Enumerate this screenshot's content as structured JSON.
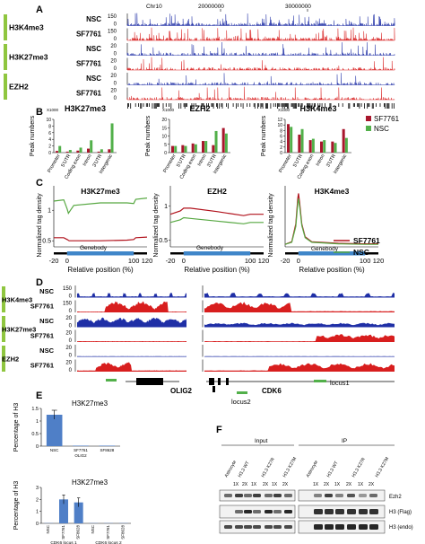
{
  "panels": {
    "A": "A",
    "B": "B",
    "C": "C",
    "D": "D",
    "E": "E",
    "F": "F"
  },
  "colors": {
    "nsc_blue": "#1f2fa6",
    "sf_red": "#d81e1e",
    "bar_red": "#a8162c",
    "bar_green": "#52b04a",
    "green_tag": "#8fc63f",
    "line_red": "#b1121c",
    "line_green": "#57a842",
    "genebody": "#3f86c9",
    "bar_e": "#4f7fc7"
  },
  "panelA": {
    "chrom": "Chr10",
    "pos1": "20000000",
    "pos2": "30000000",
    "tracks": [
      {
        "mark": "H3K4me3",
        "rows": [
          {
            "label": "NSC",
            "scale": "150"
          },
          {
            "label": "SF7761",
            "scale": "150"
          }
        ]
      },
      {
        "mark": "H3K27me3",
        "rows": [
          {
            "label": "NSC",
            "scale": "20"
          },
          {
            "label": "SF7761",
            "scale": "20"
          }
        ]
      },
      {
        "mark": "EZH2",
        "rows": [
          {
            "label": "NSC",
            "scale": "20"
          },
          {
            "label": "SF7761",
            "scale": "20"
          }
        ]
      }
    ],
    "zero": "0"
  },
  "panelB": {
    "x1000": "X1000",
    "ylabel": "Peak numbers",
    "categories": [
      "Promoter",
      "5'UTR",
      "Coding exon",
      "Intron",
      "3'UTR",
      "Intergenic"
    ],
    "legend": [
      "SF7761",
      "NSC"
    ]
  },
  "chart_data": [
    {
      "type": "bar",
      "title": "H3K27me3",
      "ylabel": "Peak numbers",
      "ylim": [
        0,
        10
      ],
      "categories": [
        "Promoter",
        "5'UTR",
        "Coding exon",
        "Intron",
        "3'UTR",
        "Intergenic"
      ],
      "series": [
        {
          "name": "SF7761",
          "values": [
            0.5,
            0.3,
            0.6,
            1.2,
            0.3,
            1.0
          ]
        },
        {
          "name": "NSC",
          "values": [
            2.0,
            0.8,
            1.5,
            3.7,
            1.0,
            8.8
          ]
        }
      ]
    },
    {
      "type": "bar",
      "title": "EZH2",
      "ylabel": "Peak numbers",
      "ylim": [
        0,
        20
      ],
      "categories": [
        "Promoter",
        "5'UTR",
        "Coding exon",
        "Intron",
        "3'UTR",
        "Intergenic"
      ],
      "series": [
        {
          "name": "SF7761",
          "values": [
            4.0,
            4.5,
            5.5,
            7.0,
            4.5,
            14.8
          ]
        },
        {
          "name": "NSC",
          "values": [
            4.0,
            4.0,
            5.0,
            7.0,
            13.0,
            11.5
          ]
        }
      ]
    },
    {
      "type": "bar",
      "title": "H3K4me3",
      "ylabel": "Peak numbers",
      "ylim": [
        0,
        12
      ],
      "categories": [
        "Promoter",
        "5'UTR",
        "Coding exon",
        "Intron",
        "3'UTR",
        "Intergenic"
      ],
      "series": [
        {
          "name": "SF7761",
          "values": [
            10.3,
            6.5,
            4.5,
            4.0,
            4.0,
            8.5
          ]
        },
        {
          "name": "NSC",
          "values": [
            9.3,
            8.5,
            5.0,
            4.5,
            3.5,
            5.3
          ]
        }
      ]
    },
    {
      "type": "line",
      "title": "H3K27me3",
      "ylabel": "Normalized tag density",
      "xlabel": "Relative position (%)",
      "ylim": [
        0.4,
        1.4
      ],
      "yticks": [
        "1",
        "0.5"
      ],
      "xticks": [
        "-20",
        "0",
        "100",
        "120"
      ],
      "series": [
        {
          "name": "SF7761",
          "x": [
            -20,
            -5,
            0,
            3,
            10,
            50,
            90,
            100,
            103,
            120
          ],
          "y": [
            0.55,
            0.55,
            0.52,
            0.5,
            0.5,
            0.5,
            0.51,
            0.52,
            0.55,
            0.56
          ]
        },
        {
          "name": "NSC",
          "x": [
            -20,
            -5,
            0,
            2,
            5,
            10,
            50,
            90,
            100,
            103,
            120
          ],
          "y": [
            1.15,
            1.17,
            1.02,
            0.95,
            1.0,
            1.08,
            1.12,
            1.12,
            1.11,
            1.18,
            1.2
          ]
        }
      ]
    },
    {
      "type": "line",
      "title": "EZH2",
      "ylabel": "Normalized tag density",
      "xlabel": "Relative position (%)",
      "ylim": [
        0.4,
        1.3
      ],
      "yticks": [
        "1",
        "0.5"
      ],
      "xticks": [
        "-20",
        "0",
        "100",
        "120"
      ],
      "series": [
        {
          "name": "SF7761",
          "x": [
            -20,
            -5,
            0,
            10,
            50,
            90,
            100,
            120
          ],
          "y": [
            0.88,
            0.93,
            0.97,
            0.97,
            0.92,
            0.86,
            0.88,
            0.88
          ]
        },
        {
          "name": "NSC",
          "x": [
            -20,
            -5,
            0,
            10,
            50,
            90,
            100,
            120
          ],
          "y": [
            0.76,
            0.8,
            0.83,
            0.82,
            0.78,
            0.74,
            0.76,
            0.76
          ]
        }
      ]
    },
    {
      "type": "line",
      "title": "H3K4me3",
      "ylabel": "Normalized tag density",
      "xlabel": "Relative position (%)",
      "ylim": [
        0,
        1.2
      ],
      "xticks": [
        "-20",
        "0",
        "100",
        "120"
      ],
      "series": [
        {
          "name": "SF7761",
          "x": [
            -20,
            -10,
            -4,
            -1,
            0,
            2,
            5,
            10,
            20,
            60,
            100,
            120
          ],
          "y": [
            0.05,
            0.1,
            0.45,
            0.95,
            1.05,
            0.85,
            0.45,
            0.2,
            0.1,
            0.07,
            0.06,
            0.06
          ]
        },
        {
          "name": "NSC",
          "x": [
            -20,
            -10,
            -4,
            -1,
            0,
            2,
            5,
            10,
            20,
            60,
            100,
            120
          ],
          "y": [
            0.05,
            0.09,
            0.4,
            0.85,
            0.95,
            0.78,
            0.42,
            0.18,
            0.09,
            0.06,
            0.05,
            0.05
          ]
        }
      ]
    },
    {
      "type": "bar",
      "title": "H3K27me3",
      "ylabel": "Percentage of H3",
      "ylim": [
        0,
        1.5
      ],
      "yticks": [
        "1.5",
        "1",
        "0.5",
        "0"
      ],
      "categories": [
        "NSC",
        "SF7761",
        "SF8628"
      ],
      "values": [
        1.25,
        0.02,
        0.02
      ],
      "xlabel": "OLIG2"
    },
    {
      "type": "bar",
      "title": "H3K27me3",
      "ylabel": "Percentage of H3",
      "ylim": [
        0,
        3
      ],
      "yticks": [
        "3",
        "2",
        "1",
        "0"
      ],
      "categories": [
        "NSC",
        "SF7761",
        "SF8628",
        "NSC",
        "SF7761",
        "SF8628"
      ],
      "values": [
        0.02,
        2.0,
        1.75,
        0.02,
        0.02,
        0.02
      ],
      "groups": [
        "CDK6 locus 1",
        "CDK6 locus 2"
      ]
    }
  ],
  "panelC": {
    "genebody": "Genebody",
    "legend": [
      "SF7761",
      "NSC"
    ]
  },
  "panelD": {
    "left": {
      "gene": "OLIG2"
    },
    "right": {
      "gene": "CDK6",
      "locus1": "locus1",
      "locus2": "locus2"
    },
    "tracks": [
      {
        "mark": "H3K4me3",
        "rows": [
          {
            "label": "NSC",
            "scale": "150"
          },
          {
            "label": "SF7761",
            "scale": "150"
          }
        ]
      },
      {
        "mark": "H3K27me3",
        "rows": [
          {
            "label": "NSC",
            "scale": "20"
          },
          {
            "label": "SF7761",
            "scale": "20"
          }
        ]
      },
      {
        "mark": "EZH2",
        "rows": [
          {
            "label": "NSC",
            "scale": "20"
          },
          {
            "label": "SF7761",
            "scale": "20"
          }
        ]
      }
    ],
    "zero": "0"
  },
  "panelF": {
    "input": "Input",
    "ip": "IP",
    "lanes_input": [
      "Astrocyte",
      "H3.3 WT",
      "H3.3 K27R",
      "H3.3 K27M"
    ],
    "lanes_ip": [
      "Astrocyte",
      "H3.3 WT",
      "H3.3 K27R",
      "H3.3 K27M"
    ],
    "dose": [
      "1X",
      "2X"
    ],
    "bands": [
      "Ezh2",
      "H3 (Flag)",
      "H3 (endo)"
    ]
  }
}
